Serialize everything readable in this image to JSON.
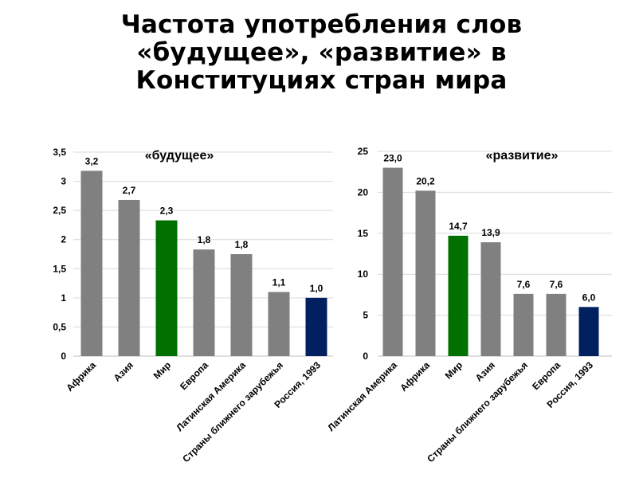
{
  "title": {
    "line1": "Частота употребления слов",
    "line2": "«будущее», «развитие» в",
    "line3": "Конституциях стран мира"
  },
  "colors": {
    "gray": "#808080",
    "green": "#007000",
    "navy": "#002060",
    "grid": "#d9d9d9"
  },
  "chart_data": [
    {
      "type": "bar",
      "title": "«будущее»",
      "categories": [
        "Африка",
        "Азия",
        "Мир",
        "Европа",
        "Латинская Америка",
        "Страны ближнего зарубежья",
        "Россия, 1993"
      ],
      "values": [
        3.2,
        2.7,
        2.3,
        1.8,
        1.8,
        1.1,
        1.0
      ],
      "value_labels": [
        "3,2",
        "2,7",
        "2,3",
        "1,8",
        "1,8",
        "1,1",
        "1,0"
      ],
      "actual_heights": [
        3.18,
        2.68,
        2.33,
        1.83,
        1.75,
        1.1,
        1.0
      ],
      "bar_colors": [
        "gray",
        "gray",
        "green",
        "gray",
        "gray",
        "gray",
        "navy"
      ],
      "ylim": [
        0,
        3.5
      ],
      "y_ticks": [
        "0",
        "0,5",
        "1",
        "1,5",
        "2",
        "2,5",
        "3",
        "3,5"
      ],
      "grid": true,
      "xlabel": "",
      "ylabel": ""
    },
    {
      "type": "bar",
      "title": "«развитие»",
      "categories": [
        "Латинская Америка",
        "Африка",
        "Мир",
        "Азия",
        "Страны ближнего зарубежья",
        "Европа",
        "Россия, 1993"
      ],
      "values": [
        23.0,
        20.2,
        14.7,
        13.9,
        7.6,
        7.6,
        6.0
      ],
      "value_labels": [
        "23,0",
        "20,2",
        "14,7",
        "13,9",
        "7,6",
        "7,6",
        "6,0"
      ],
      "actual_heights": [
        23.0,
        20.2,
        14.7,
        13.9,
        7.6,
        7.6,
        6.0
      ],
      "bar_colors": [
        "gray",
        "gray",
        "green",
        "gray",
        "gray",
        "gray",
        "navy"
      ],
      "ylim": [
        0,
        25
      ],
      "y_ticks": [
        "0",
        "5",
        "10",
        "15",
        "20",
        "25"
      ],
      "grid": true,
      "xlabel": "",
      "ylabel": ""
    }
  ]
}
